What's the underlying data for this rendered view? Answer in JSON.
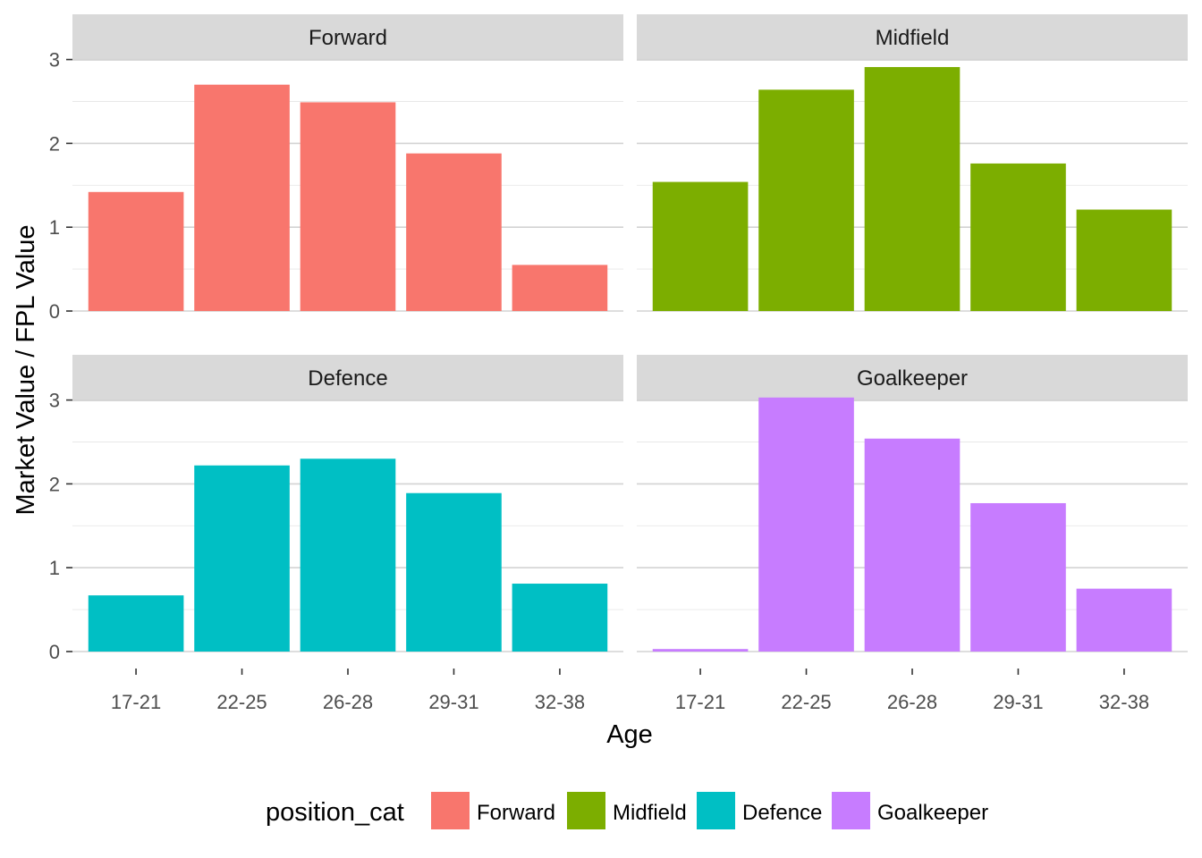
{
  "chart_data": {
    "type": "bar",
    "facet_by": "position_cat",
    "xlabel": "Age",
    "ylabel": "Market Value / FPL Value",
    "categories": [
      "17-21",
      "22-25",
      "26-28",
      "29-31",
      "32-38"
    ],
    "yticks": [
      0,
      1,
      2,
      3
    ],
    "ylim": [
      0,
      3.05
    ],
    "grid": true,
    "legend": {
      "title": "position_cat",
      "placement": "bottom",
      "entries": [
        {
          "label": "Forward",
          "color": "#F8766D"
        },
        {
          "label": "Midfield",
          "color": "#7CAE00"
        },
        {
          "label": "Defence",
          "color": "#00BFC4"
        },
        {
          "label": "Goalkeeper",
          "color": "#C77CFF"
        }
      ]
    },
    "panels": [
      {
        "name": "Forward",
        "color": "#F8766D",
        "values": [
          1.42,
          2.7,
          2.49,
          1.88,
          0.55
        ]
      },
      {
        "name": "Midfield",
        "color": "#7CAE00",
        "values": [
          1.54,
          2.64,
          2.91,
          1.76,
          1.21
        ]
      },
      {
        "name": "Defence",
        "color": "#00BFC4",
        "values": [
          0.67,
          2.22,
          2.3,
          1.89,
          0.81
        ]
      },
      {
        "name": "Goalkeeper",
        "color": "#C77CFF",
        "values": [
          0.03,
          3.03,
          2.54,
          1.77,
          0.75
        ]
      }
    ]
  }
}
